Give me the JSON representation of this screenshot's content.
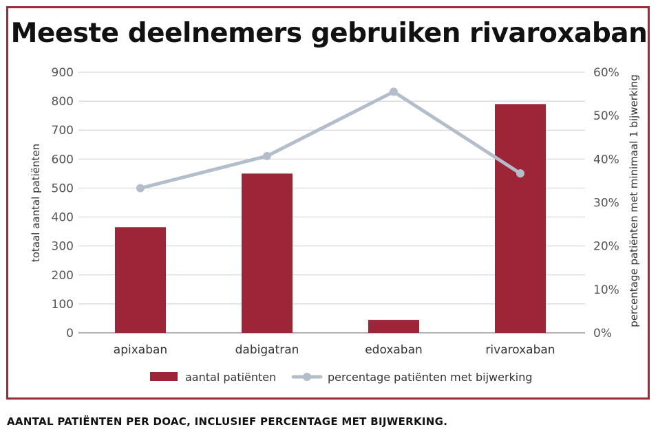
{
  "chart_data": {
    "type": "bar",
    "title": "Meeste deelnemers gebruiken rivaroxaban",
    "caption": "AANTAL PATIËNTEN PER DOAC, INCLUSIEF PERCENTAGE MET BIJWERKING.",
    "categories": [
      "apixaban",
      "dabigatran",
      "edoxaban",
      "rivaroxaban"
    ],
    "series": [
      {
        "name": "aantal patiënten",
        "type": "bar",
        "axis": "left",
        "values": [
          365,
          550,
          45,
          790
        ],
        "color": "#9c2538"
      },
      {
        "name": "percentage patiënten met bijwerking",
        "type": "line",
        "axis": "right",
        "values": [
          33.3,
          40.7,
          55.5,
          36.7
        ],
        "color": "#b4bdca"
      }
    ],
    "y_left": {
      "label": "totaal aantal patiënten",
      "ylim": [
        0,
        900
      ],
      "ticks": [
        "0",
        "100",
        "200",
        "300",
        "400",
        "500",
        "600",
        "700",
        "800",
        "900"
      ]
    },
    "y_right": {
      "label": "percentage patiënten met minimaal 1 bijwerking",
      "ylim": [
        0,
        60
      ],
      "ticks": [
        "0%",
        "10%",
        "20%",
        "30%",
        "40%",
        "50%",
        "60%"
      ]
    },
    "grid": true,
    "legend_position": "bottom-center",
    "frame_color": "#9c2a3a"
  }
}
